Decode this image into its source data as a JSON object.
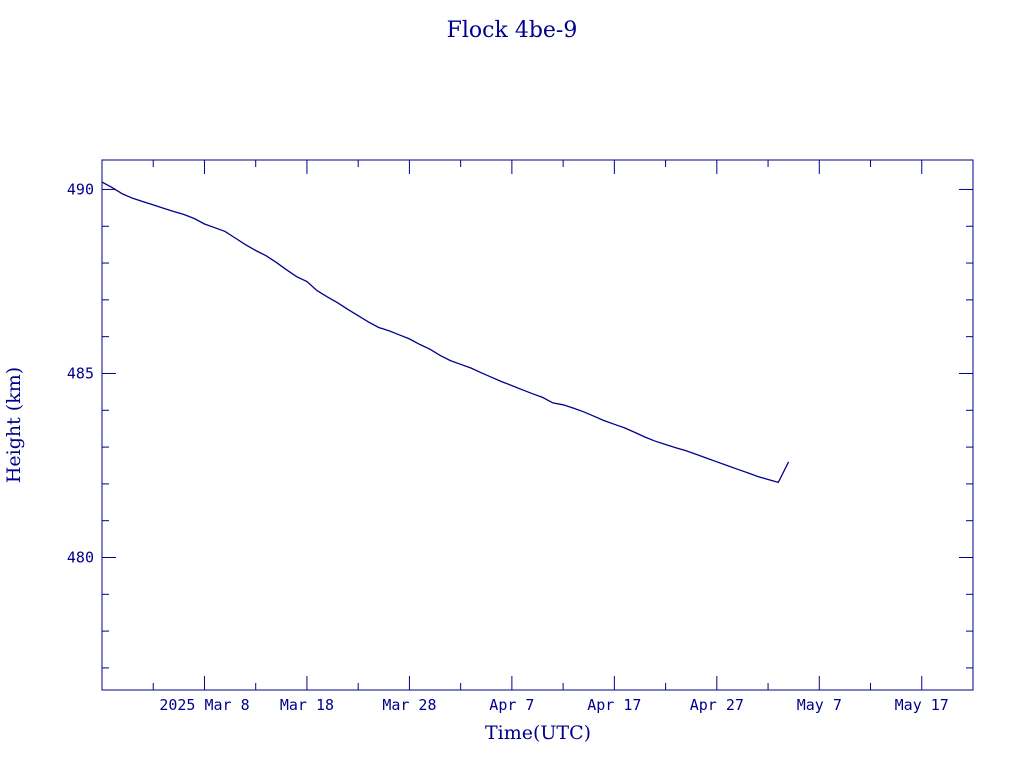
{
  "chart_data": {
    "type": "line",
    "title": "Flock 4be-9",
    "xlabel": "Time(UTC)",
    "ylabel": "Height (km)",
    "x_tick_labels": [
      "2025 Mar  8",
      "Mar 18",
      "Mar 28",
      "Apr  7",
      "Apr 17",
      "Apr 27",
      "May  7",
      "May 17"
    ],
    "x_tick_dates": [
      "2025-03-08",
      "2025-03-18",
      "2025-03-28",
      "2025-04-07",
      "2025-04-17",
      "2025-04-27",
      "2025-05-07",
      "2025-05-17"
    ],
    "xlim": [
      "2025-02-26",
      "2025-05-22"
    ],
    "y_ticks": [
      480,
      485,
      490
    ],
    "ylim": [
      476.4,
      490.8
    ],
    "grid": false,
    "series": [
      {
        "x": [
          "2025-02-26",
          "2025-02-27",
          "2025-02-28",
          "2025-03-01",
          "2025-03-02",
          "2025-03-03",
          "2025-03-04",
          "2025-03-05",
          "2025-03-06",
          "2025-03-07",
          "2025-03-08",
          "2025-03-09",
          "2025-03-10",
          "2025-03-11",
          "2025-03-12",
          "2025-03-13",
          "2025-03-14",
          "2025-03-15",
          "2025-03-16",
          "2025-03-17",
          "2025-03-18",
          "2025-03-19",
          "2025-03-20",
          "2025-03-21",
          "2025-03-22",
          "2025-03-23",
          "2025-03-24",
          "2025-03-25",
          "2025-03-26",
          "2025-03-27",
          "2025-03-28",
          "2025-03-29",
          "2025-03-30",
          "2025-03-31",
          "2025-04-01",
          "2025-04-02",
          "2025-04-03",
          "2025-04-04",
          "2025-04-05",
          "2025-04-06",
          "2025-04-07",
          "2025-04-08",
          "2025-04-09",
          "2025-04-10",
          "2025-04-11",
          "2025-04-12",
          "2025-04-13",
          "2025-04-14",
          "2025-04-15",
          "2025-04-16",
          "2025-04-17",
          "2025-04-18",
          "2025-04-19",
          "2025-04-20",
          "2025-04-21",
          "2025-04-22",
          "2025-04-23",
          "2025-04-24",
          "2025-04-25",
          "2025-04-26",
          "2025-04-27",
          "2025-04-28",
          "2025-04-29",
          "2025-04-30",
          "2025-05-01",
          "2025-05-02",
          "2025-05-03",
          "2025-05-04"
        ],
        "y": [
          490.2,
          490.05,
          489.88,
          489.76,
          489.67,
          489.58,
          489.49,
          489.4,
          489.32,
          489.21,
          489.06,
          488.96,
          488.86,
          488.68,
          488.5,
          488.34,
          488.2,
          488.02,
          487.82,
          487.63,
          487.5,
          487.25,
          487.08,
          486.92,
          486.74,
          486.57,
          486.4,
          486.25,
          486.16,
          486.05,
          485.94,
          485.79,
          485.66,
          485.49,
          485.35,
          485.25,
          485.15,
          485.02,
          484.9,
          484.78,
          484.67,
          484.56,
          484.45,
          484.35,
          484.2,
          484.15,
          484.06,
          483.96,
          483.84,
          483.72,
          483.62,
          483.52,
          483.4,
          483.27,
          483.16,
          483.07,
          482.98,
          482.9,
          482.8,
          482.7,
          482.6,
          482.5,
          482.4,
          482.3,
          482.2,
          482.12,
          482.04,
          482.6
        ]
      }
    ]
  }
}
